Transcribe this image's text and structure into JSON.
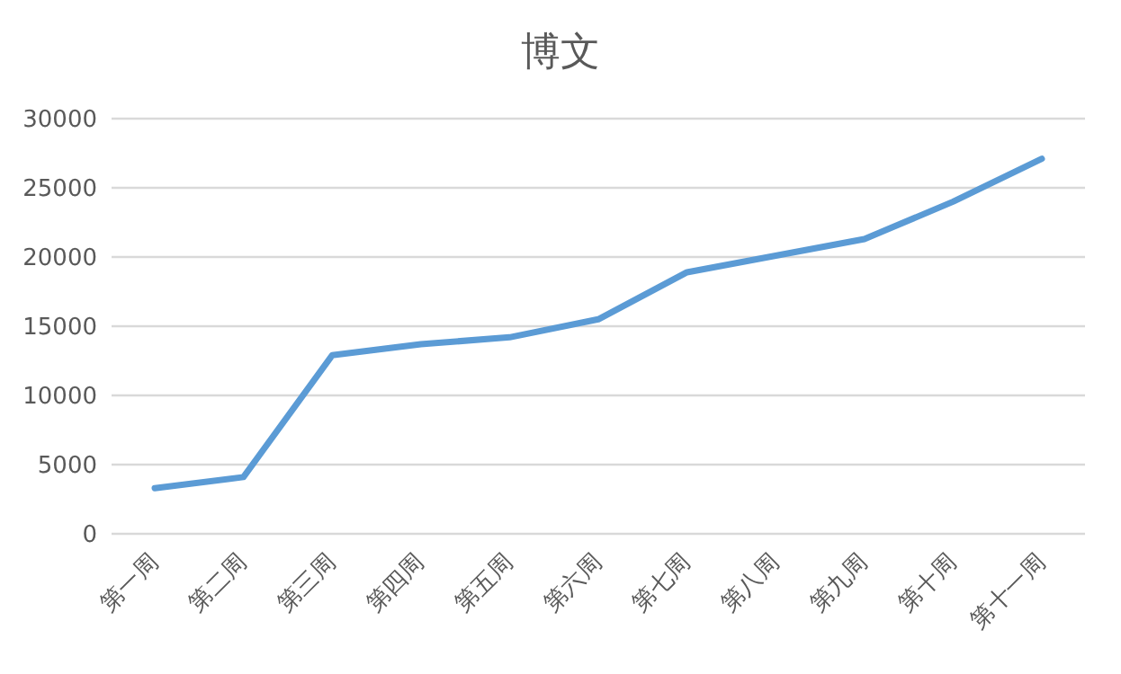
{
  "chart_data": {
    "type": "line",
    "title": "博文",
    "categories": [
      "第一周",
      "第二周",
      "第三周",
      "第四周",
      "第五周",
      "第六周",
      "第七周",
      "第八周",
      "第九周",
      "第十周",
      "第十一周"
    ],
    "series": [
      {
        "color": "#5b9bd5",
        "values": [
          3300,
          4100,
          12900,
          13700,
          14200,
          15500,
          18900,
          20100,
          21300,
          24000,
          27100
        ]
      }
    ],
    "ylim": [
      0,
      30000
    ],
    "yticks": [
      0,
      5000,
      10000,
      15000,
      20000,
      25000,
      30000
    ],
    "grid": "y",
    "marker": "none",
    "line_style": "solid"
  }
}
